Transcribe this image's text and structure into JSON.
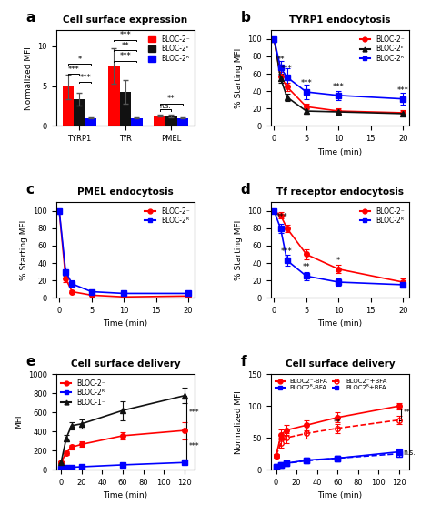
{
  "chart_data": [
    {
      "type": "bar",
      "panel": "a",
      "title": "Cell surface expression",
      "ylabel": "Normalized MFI",
      "categories": [
        "TYRP1",
        "TfR",
        "PMEL"
      ],
      "series": [
        {
          "name": "BLOC-2⁻",
          "color": "#FF0000",
          "values": [
            4.9,
            7.5,
            1.3
          ],
          "errors": [
            1.5,
            2.2,
            0.15
          ]
        },
        {
          "name": "BLOC-2ᶜ",
          "color": "#111111",
          "values": [
            3.3,
            4.3,
            1.2
          ],
          "errors": [
            0.8,
            1.5,
            0.15
          ]
        },
        {
          "name": "BLOC-2ᴿ",
          "color": "#0000FF",
          "values": [
            1.0,
            1.0,
            1.0
          ],
          "errors": [
            0.1,
            0.1,
            0.05
          ]
        }
      ],
      "ylim": [
        0,
        12
      ],
      "yticks": [
        0,
        5,
        10
      ],
      "legend": "upper right",
      "annotations": [
        {
          "category": "TYRP1",
          "from": "BLOC-2⁻",
          "to": "BLOC-2ᶜ",
          "y": 6.5,
          "text": "***"
        },
        {
          "category": "TYRP1",
          "from": "BLOC-2⁻",
          "to": "BLOC-2ᴿ",
          "y": 7.8,
          "text": "*"
        },
        {
          "category": "TYRP1",
          "from": "BLOC-2ᶜ",
          "to": "BLOC-2ᴿ",
          "y": 5.5,
          "text": "***"
        },
        {
          "category": "TfR",
          "from": "BLOC-2⁻",
          "to": "BLOC-2ᴿ",
          "y": 10.8,
          "text": "***"
        },
        {
          "category": "TfR",
          "from": "BLOC-2⁻",
          "to": "BLOC-2ᴿ",
          "y": 9.5,
          "text": "**"
        },
        {
          "category": "TfR",
          "from": "BLOC-2⁻",
          "to": "BLOC-2ᴿ",
          "y": 8.2,
          "text": "***"
        },
        {
          "category": "PMEL",
          "from": "BLOC-2⁻",
          "to": "BLOC-2ᶜ",
          "y": 2.05,
          "text": "n.s."
        },
        {
          "category": "PMEL",
          "from": "BLOC-2⁻",
          "to": "BLOC-2ᴿ",
          "y": 2.8,
          "text": "**"
        }
      ]
    },
    {
      "type": "line",
      "panel": "b",
      "title": "TYRP1 endocytosis",
      "xlabel": "Time (min)",
      "ylabel": "% Starting MFI",
      "x": [
        0,
        1,
        2,
        5,
        10,
        20
      ],
      "series": [
        {
          "name": "BLOC-2⁻",
          "color": "#FF0000",
          "marker": "circle",
          "line_style": "solid",
          "values": [
            100,
            57,
            45,
            22,
            17,
            15
          ],
          "errors": [
            2,
            5,
            5,
            3,
            3,
            3
          ]
        },
        {
          "name": "BLOC-2ᶜ",
          "color": "#111111",
          "marker": "triangle",
          "line_style": "solid",
          "values": [
            100,
            55,
            33,
            17,
            16,
            14
          ],
          "errors": [
            2,
            5,
            4,
            3,
            2,
            2
          ]
        },
        {
          "name": "BLOC-2ᴿ",
          "color": "#0000FF",
          "marker": "square",
          "line_style": "solid",
          "values": [
            100,
            67,
            56,
            39,
            35,
            31
          ],
          "errors": [
            2,
            8,
            10,
            8,
            5,
            7
          ]
        }
      ],
      "xlim": [
        -0.5,
        21
      ],
      "xticks": [
        0,
        5,
        10,
        15,
        20
      ],
      "ylim": [
        0,
        110
      ],
      "yticks": [
        0,
        20,
        40,
        60,
        80,
        100
      ],
      "legend": "upper right",
      "annotations": [
        {
          "text": "**",
          "x": 1.0,
          "y": 74
        },
        {
          "text": "***",
          "x": 2.0,
          "y": 63
        },
        {
          "text": "***",
          "x": 5.0,
          "y": 46
        },
        {
          "text": "***",
          "x": 10.0,
          "y": 42
        },
        {
          "text": "***",
          "x": 20.0,
          "y": 38
        }
      ]
    },
    {
      "type": "line",
      "panel": "c",
      "title": "PMEL endocytosis",
      "xlabel": "Time (min)",
      "ylabel": "% Starting MFI",
      "x": [
        0,
        1,
        2,
        5,
        10,
        20
      ],
      "series": [
        {
          "name": "BLOC-2⁻",
          "color": "#FF0000",
          "marker": "circle",
          "line_style": "solid",
          "values": [
            100,
            22,
            7,
            3,
            1,
            2
          ],
          "errors": [
            2,
            4,
            2,
            1,
            0.5,
            0.5
          ]
        },
        {
          "name": "BLOC-2ᴿ",
          "color": "#0000FF",
          "marker": "square",
          "line_style": "solid",
          "values": [
            100,
            30,
            16,
            7,
            5,
            5
          ],
          "errors": [
            2,
            5,
            4,
            2,
            1,
            1
          ]
        }
      ],
      "xlim": [
        -0.5,
        21
      ],
      "xticks": [
        0,
        5,
        10,
        15,
        20
      ],
      "ylim": [
        0,
        110
      ],
      "yticks": [
        0,
        20,
        40,
        60,
        80,
        100
      ],
      "legend": "upper right"
    },
    {
      "type": "line",
      "panel": "d",
      "title": "Tf receptor endocytosis",
      "xlabel": "Time (min)",
      "ylabel": "% Starting MFI",
      "x": [
        0,
        1,
        2,
        5,
        10,
        20
      ],
      "series": [
        {
          "name": "BLOC-2⁻",
          "color": "#FF0000",
          "marker": "circle",
          "line_style": "solid",
          "values": [
            100,
            95,
            80,
            50,
            33,
            18
          ],
          "errors": [
            2,
            4,
            4,
            6,
            5,
            4
          ]
        },
        {
          "name": "BLOC-2ᴿ",
          "color": "#0000FF",
          "marker": "square",
          "line_style": "solid",
          "values": [
            100,
            80,
            43,
            25,
            18,
            15
          ],
          "errors": [
            2,
            5,
            6,
            5,
            4,
            3
          ]
        }
      ],
      "xlim": [
        -0.5,
        21
      ],
      "xticks": [
        0,
        5,
        10,
        15,
        20
      ],
      "ylim": [
        0,
        110
      ],
      "yticks": [
        0,
        20,
        40,
        60,
        80,
        100
      ],
      "legend": "upper right",
      "annotations": [
        {
          "text": "***",
          "x": 1.2,
          "y": 90
        },
        {
          "text": "***",
          "x": 2.0,
          "y": 50
        },
        {
          "text": "**",
          "x": 5.0,
          "y": 33
        },
        {
          "text": "*",
          "x": 10.0,
          "y": 40
        }
      ]
    },
    {
      "type": "line",
      "panel": "e",
      "title": "Cell surface delivery",
      "xlabel": "Time (min)",
      "ylabel": "MFI",
      "x": [
        0,
        5,
        10,
        20,
        60,
        120
      ],
      "series": [
        {
          "name": "BLOC-2⁻",
          "color": "#FF0000",
          "marker": "circle",
          "line_style": "solid",
          "values": [
            80,
            175,
            235,
            265,
            355,
            410
          ],
          "errors": [
            10,
            20,
            25,
            30,
            40,
            90
          ]
        },
        {
          "name": "BLOC-2ᴿ",
          "color": "#0000FF",
          "marker": "square",
          "line_style": "solid",
          "values": [
            10,
            20,
            25,
            30,
            50,
            75
          ],
          "errors": [
            3,
            5,
            5,
            5,
            8,
            10
          ]
        },
        {
          "name": "BLOC-1⁻",
          "color": "#111111",
          "marker": "triangle",
          "line_style": "solid",
          "values": [
            80,
            330,
            460,
            480,
            620,
            775
          ],
          "errors": [
            10,
            30,
            40,
            50,
            100,
            80
          ]
        }
      ],
      "xlim": [
        -5,
        130
      ],
      "xticks": [
        0,
        20,
        40,
        60,
        80,
        100,
        120
      ],
      "ylim": [
        0,
        1000
      ],
      "yticks": [
        0,
        200,
        400,
        600,
        800,
        1000
      ],
      "legend": "upper left",
      "annotations": [
        {
          "text": "***",
          "x": 122,
          "y1": 775,
          "y2": 410
        },
        {
          "text": "***",
          "x": 122,
          "y1": 410,
          "y2": 75
        }
      ]
    },
    {
      "type": "line",
      "panel": "f",
      "title": "Cell surface delivery",
      "xlabel": "Time (min)",
      "ylabel": "Normalized MFI",
      "x": [
        0,
        5,
        10,
        30,
        60,
        120
      ],
      "series": [
        {
          "name": "BLOC2⁻-BFA",
          "color": "#FF0000",
          "marker": "circle",
          "line_style": "solid",
          "values": [
            22,
            55,
            62,
            70,
            82,
            100
          ],
          "errors": [
            3,
            8,
            8,
            8,
            8,
            5
          ]
        },
        {
          "name": "BLOC2ᴿ-BFA",
          "color": "#0000FF",
          "marker": "square",
          "line_style": "solid",
          "values": [
            5,
            8,
            10,
            15,
            18,
            28
          ],
          "errors": [
            1,
            2,
            2,
            3,
            3,
            5
          ]
        },
        {
          "name": "BLOC2⁻+BFA",
          "color": "#FF0000",
          "marker": "open circle",
          "line_style": "dashed",
          "values": [
            22,
            42,
            50,
            57,
            65,
            78
          ],
          "errors": [
            3,
            8,
            8,
            8,
            7,
            6
          ]
        },
        {
          "name": "BLOC2ᴿ+BFA",
          "color": "#0000FF",
          "marker": "open square",
          "line_style": "dashed",
          "values": [
            5,
            8,
            10,
            14,
            18,
            25
          ],
          "errors": [
            1,
            2,
            2,
            3,
            3,
            5
          ]
        }
      ],
      "xlim": [
        -5,
        130
      ],
      "xticks": [
        0,
        20,
        40,
        60,
        80,
        100,
        120
      ],
      "ylim": [
        0,
        150
      ],
      "yticks": [
        0,
        50,
        100,
        150
      ],
      "legend": "upper left",
      "annotations": [
        {
          "text": "**",
          "x": 122,
          "y1": 100,
          "y2": 78
        },
        {
          "text": "n.s.",
          "x": 122,
          "y1": 28,
          "y2": 25
        },
        {
          "text": "**",
          "x": 60,
          "y": 70
        }
      ]
    }
  ]
}
